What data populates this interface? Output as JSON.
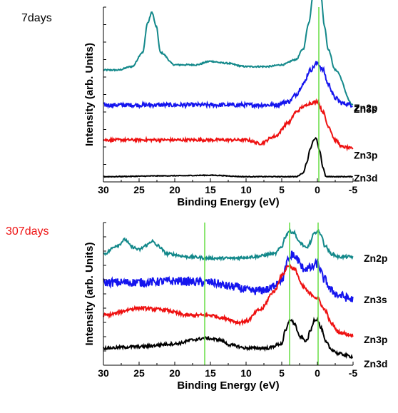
{
  "colors": {
    "green_ref": "#66dd44",
    "axis": "#000000"
  },
  "chart_data": [
    {
      "type": "line",
      "panel_label": "7days",
      "panel_label_color": "#000000",
      "xlabel": "Binding Energy (eV)",
      "ylabel": "Intensity (arb. Units)",
      "x_ticks": [
        "30",
        "25",
        "20",
        "15",
        "10",
        "5",
        "0",
        "-5"
      ],
      "xlim": [
        30,
        -5
      ],
      "reference_lines_x": [
        -0.2
      ],
      "series": [
        {
          "name": "Zn2p",
          "color": "#12888a",
          "offset": 0.64,
          "noise": 0.004,
          "points": [
            [
              30,
              0.0
            ],
            [
              28,
              0.0
            ],
            [
              26,
              0.02
            ],
            [
              24.5,
              0.1
            ],
            [
              23.8,
              0.27
            ],
            [
              23.2,
              0.33
            ],
            [
              22.6,
              0.25
            ],
            [
              22,
              0.1
            ],
            [
              20,
              0.03
            ],
            [
              17,
              0.03
            ],
            [
              15,
              0.05
            ],
            [
              13,
              0.04
            ],
            [
              10,
              0.02
            ],
            [
              7,
              0.02
            ],
            [
              5,
              0.03
            ],
            [
              3,
              0.06
            ],
            [
              2,
              0.12
            ],
            [
              1.2,
              0.27
            ],
            [
              0.6,
              0.43
            ],
            [
              0,
              0.49
            ],
            [
              -0.5,
              0.42
            ],
            [
              -1,
              0.25
            ],
            [
              -1.5,
              0.12
            ],
            [
              -2.5,
              0.0
            ],
            [
              -5,
              -0.2
            ]
          ]
        },
        {
          "name": "Zn3s",
          "color": "#1515ee",
          "offset": 0.44,
          "noise": 0.012,
          "points": [
            [
              30,
              0.0
            ],
            [
              20,
              0.0
            ],
            [
              10,
              0.0
            ],
            [
              6,
              0.0
            ],
            [
              4,
              0.02
            ],
            [
              3,
              0.06
            ],
            [
              2,
              0.12
            ],
            [
              1,
              0.2
            ],
            [
              0,
              0.24
            ],
            [
              -0.8,
              0.2
            ],
            [
              -1.5,
              0.12
            ],
            [
              -2.5,
              0.04
            ],
            [
              -3.5,
              0.01
            ],
            [
              -5,
              0.0
            ]
          ]
        },
        {
          "name": "Zn3p",
          "color": "#ee1111",
          "offset": 0.24,
          "noise": 0.008,
          "points": [
            [
              30,
              0.0
            ],
            [
              15,
              0.0
            ],
            [
              10,
              0.0
            ],
            [
              8,
              -0.02
            ],
            [
              6,
              0.02
            ],
            [
              4,
              0.1
            ],
            [
              3,
              0.16
            ],
            [
              2,
              0.19
            ],
            [
              1,
              0.21
            ],
            [
              0,
              0.22
            ],
            [
              -0.8,
              0.16
            ],
            [
              -1.5,
              0.08
            ],
            [
              -2.5,
              0.0
            ],
            [
              -3.5,
              -0.04
            ],
            [
              -5,
              -0.05
            ]
          ]
        },
        {
          "name": "Zn3d",
          "color": "#000000",
          "offset": 0.03,
          "noise": 0.002,
          "points": [
            [
              30,
              0.0
            ],
            [
              20,
              0.005
            ],
            [
              15,
              0.008
            ],
            [
              10,
              0.0
            ],
            [
              5,
              0.0
            ],
            [
              3,
              0.0
            ],
            [
              2,
              0.02
            ],
            [
              1.5,
              0.08
            ],
            [
              1,
              0.16
            ],
            [
              0.5,
              0.21
            ],
            [
              0.2,
              0.22
            ],
            [
              -0.3,
              0.15
            ],
            [
              -0.8,
              0.05
            ],
            [
              -1.2,
              0.0
            ],
            [
              -5,
              0.0
            ]
          ]
        }
      ]
    },
    {
      "type": "line",
      "panel_label": "307days",
      "panel_label_color": "#ee1111",
      "xlabel": "Binding Energy (eV)",
      "ylabel": "Intensity (arb. Units)",
      "x_ticks": [
        "30",
        "25",
        "20",
        "15",
        "10",
        "5",
        "0",
        "-5"
      ],
      "xlim": [
        30,
        -5
      ],
      "reference_lines_x": [
        15.8,
        3.9,
        -0.1
      ],
      "series": [
        {
          "name": "Zn2p",
          "color": "#12888a",
          "offset": 0.78,
          "noise": 0.01,
          "points": [
            [
              30,
              0.0
            ],
            [
              28,
              0.06
            ],
            [
              27,
              0.1
            ],
            [
              26,
              0.05
            ],
            [
              25,
              0.03
            ],
            [
              24,
              0.06
            ],
            [
              23.2,
              0.09
            ],
            [
              22.5,
              0.06
            ],
            [
              21,
              0.0
            ],
            [
              18,
              -0.02
            ],
            [
              15,
              -0.03
            ],
            [
              12,
              -0.03
            ],
            [
              9,
              -0.02
            ],
            [
              6,
              0.0
            ],
            [
              5,
              0.05
            ],
            [
              4.5,
              0.12
            ],
            [
              4,
              0.16
            ],
            [
              3.3,
              0.15
            ],
            [
              2.5,
              0.08
            ],
            [
              1.5,
              0.04
            ],
            [
              1,
              0.08
            ],
            [
              0.5,
              0.14
            ],
            [
              0,
              0.16
            ],
            [
              -0.5,
              0.14
            ],
            [
              -1,
              0.06
            ],
            [
              -2,
              0.0
            ],
            [
              -3,
              -0.02
            ],
            [
              -5,
              -0.02
            ]
          ]
        },
        {
          "name": "Zn3s",
          "color": "#1515ee",
          "offset": 0.58,
          "noise": 0.03,
          "points": [
            [
              30,
              0.0
            ],
            [
              25,
              0.0
            ],
            [
              20,
              0.01
            ],
            [
              15,
              0.0
            ],
            [
              12,
              -0.03
            ],
            [
              9,
              -0.06
            ],
            [
              7,
              -0.05
            ],
            [
              5,
              0.02
            ],
            [
              4,
              0.16
            ],
            [
              3.5,
              0.2
            ],
            [
              3,
              0.17
            ],
            [
              2,
              0.1
            ],
            [
              1,
              0.1
            ],
            [
              0,
              0.13
            ],
            [
              -1,
              0.02
            ],
            [
              -2,
              -0.06
            ],
            [
              -3,
              -0.09
            ],
            [
              -5,
              -0.12
            ]
          ]
        },
        {
          "name": "Zn3p",
          "color": "#ee1111",
          "offset": 0.35,
          "noise": 0.012,
          "points": [
            [
              30,
              0.0
            ],
            [
              25,
              0.05
            ],
            [
              22,
              0.04
            ],
            [
              18,
              0.0
            ],
            [
              15,
              0.0
            ],
            [
              13,
              -0.02
            ],
            [
              11,
              -0.05
            ],
            [
              10,
              -0.04
            ],
            [
              8,
              0.04
            ],
            [
              6,
              0.17
            ],
            [
              5,
              0.28
            ],
            [
              4,
              0.35
            ],
            [
              3.2,
              0.32
            ],
            [
              2,
              0.2
            ],
            [
              1,
              0.15
            ],
            [
              0,
              0.12
            ],
            [
              -1,
              0.04
            ],
            [
              -2,
              -0.06
            ],
            [
              -3,
              -0.12
            ],
            [
              -5,
              -0.14
            ]
          ]
        },
        {
          "name": "Zn3d",
          "color": "#000000",
          "offset": 0.12,
          "noise": 0.01,
          "points": [
            [
              30,
              0.0
            ],
            [
              25,
              0.01
            ],
            [
              20,
              0.03
            ],
            [
              17,
              0.06
            ],
            [
              15.8,
              0.07
            ],
            [
              14,
              0.06
            ],
            [
              12,
              0.02
            ],
            [
              10,
              0.0
            ],
            [
              7,
              0.0
            ],
            [
              5,
              0.03
            ],
            [
              4.5,
              0.12
            ],
            [
              3.8,
              0.2
            ],
            [
              3.2,
              0.17
            ],
            [
              2.5,
              0.08
            ],
            [
              1.5,
              0.05
            ],
            [
              1,
              0.12
            ],
            [
              0.4,
              0.2
            ],
            [
              0,
              0.2
            ],
            [
              -0.5,
              0.14
            ],
            [
              -1.2,
              0.04
            ],
            [
              -2,
              -0.01
            ],
            [
              -3,
              -0.04
            ],
            [
              -5,
              -0.06
            ]
          ]
        }
      ]
    }
  ]
}
